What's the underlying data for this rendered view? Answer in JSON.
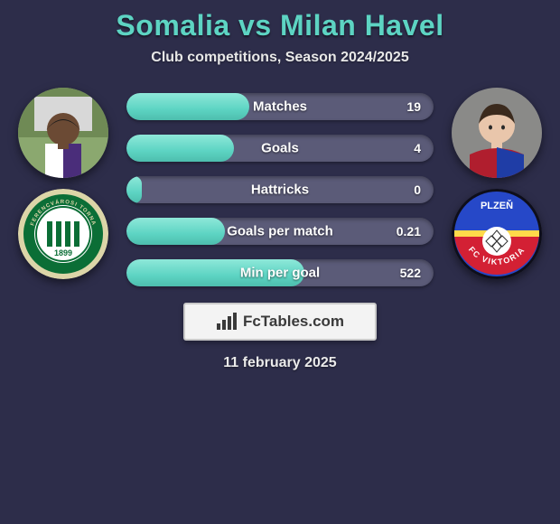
{
  "title": "Somalia vs Milan Havel",
  "subtitle": "Club competitions, Season 2024/2025",
  "date": "11 february 2025",
  "logo_text": "FcTables.com",
  "colors": {
    "background": "#2d2d4a",
    "accent": "#5dd4c3",
    "bar_track": "#5b5b78",
    "text": "#ffffff"
  },
  "player1": {
    "name": "Somalia",
    "club": "Ferencvárosi TC",
    "portrait_bg": "#8ba86f",
    "skin": "#6b4a34",
    "shirt1": "#4a2d7a",
    "shirt2": "#ffffff",
    "club_badge": {
      "outer": "#dcd5a8",
      "ring": "#0b6e36",
      "inner": "#ffffff",
      "text_small": "FERENCVÁROSI TORNA CLUB",
      "text_year": "1899"
    }
  },
  "player2": {
    "name": "Milan Havel",
    "club": "FC Viktoria Plzeň",
    "portrait_bg": "#8a8a88",
    "skin": "#e9c6ab",
    "hair": "#3b2a1d",
    "shirt1": "#b01e2e",
    "shirt2": "#1f3da6",
    "club_badge": {
      "top": "#2648c8",
      "bottom": "#d32034",
      "stripe": "#ffd94a",
      "text_top": "PLZEŇ",
      "text_side": "FC VIKTORIA"
    }
  },
  "stats": [
    {
      "label": "Matches",
      "value": "19",
      "fill_pct": 40
    },
    {
      "label": "Goals",
      "value": "4",
      "fill_pct": 35
    },
    {
      "label": "Hattricks",
      "value": "0",
      "fill_pct": 5
    },
    {
      "label": "Goals per match",
      "value": "0.21",
      "fill_pct": 32
    },
    {
      "label": "Min per goal",
      "value": "522",
      "fill_pct": 58
    }
  ]
}
